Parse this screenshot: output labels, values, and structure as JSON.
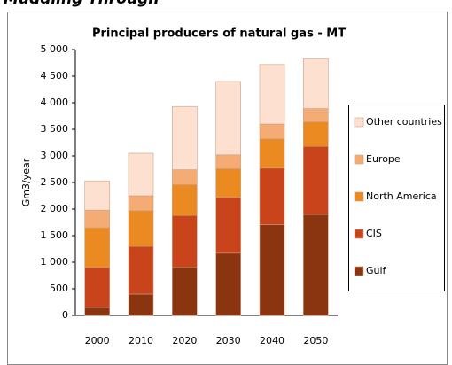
{
  "header": {
    "title": "Muddling Through"
  },
  "chart_data": {
    "type": "stacked_bar",
    "title": "Principal producers of natural gas - MT",
    "y_label": "Gm3/year",
    "categories": [
      "2000",
      "2010",
      "2020",
      "2030",
      "2040",
      "2050"
    ],
    "series": [
      {
        "name": "Gulf",
        "color": "#8b3510",
        "values": [
          150,
          400,
          900,
          1170,
          1710,
          1900
        ]
      },
      {
        "name": "CIS",
        "color": "#c9441a",
        "values": [
          750,
          900,
          980,
          1050,
          1060,
          1280
        ]
      },
      {
        "name": "North America",
        "color": "#ea8a20",
        "values": [
          750,
          670,
          580,
          540,
          550,
          460
        ]
      },
      {
        "name": "Europe",
        "color": "#f4ab74",
        "values": [
          330,
          280,
          280,
          260,
          280,
          250
        ]
      },
      {
        "name": "Other countries",
        "color": "#fde0d0",
        "values": [
          550,
          800,
          1190,
          1380,
          1120,
          940
        ]
      }
    ],
    "ylim": [
      0,
      5000
    ],
    "yticks": [
      0,
      500,
      {
        "value": 1000,
        "label": "1 000"
      },
      {
        "value": 1500,
        "label": "1 500"
      },
      {
        "value": 2000,
        "label": "2 000"
      },
      {
        "value": 2500,
        "label": "2 500"
      },
      {
        "value": 3000,
        "label": "3 000"
      },
      {
        "value": 3500,
        "label": "3 500"
      },
      {
        "value": 4000,
        "label": "4 000"
      },
      {
        "value": 4500,
        "label": "4 500"
      },
      {
        "value": 5000,
        "label": "5 000"
      }
    ],
    "legend": "right"
  }
}
